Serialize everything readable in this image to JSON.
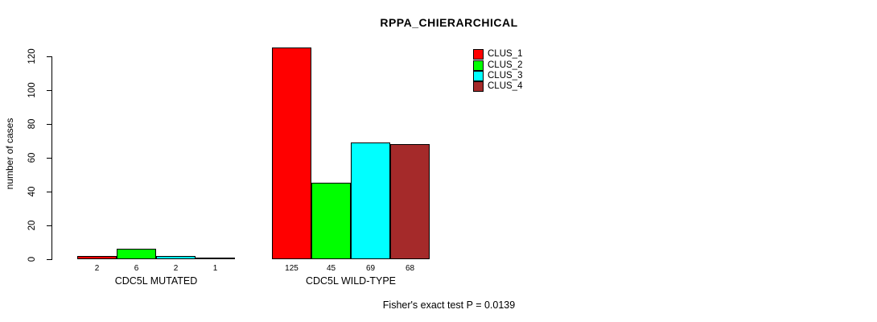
{
  "chart_data": {
    "type": "bar",
    "title": "RPPA_CHIERARCHICAL",
    "ylabel": "number of cases",
    "xlabel": "",
    "ylim": [
      0,
      125
    ],
    "yticks": [
      0,
      20,
      40,
      60,
      80,
      100,
      120
    ],
    "grid": false,
    "legend_position": "top-right",
    "series_names": [
      "CLUS_1",
      "CLUS_2",
      "CLUS_3",
      "CLUS_4"
    ],
    "colors": [
      "#ff0000",
      "#00ff00",
      "#00ffff",
      "#a52a2a"
    ],
    "groups": [
      {
        "label": "CDC5L MUTATED",
        "values": [
          2,
          6,
          2,
          1
        ]
      },
      {
        "label": "CDC5L WILD-TYPE",
        "values": [
          125,
          45,
          69,
          68
        ]
      }
    ],
    "annotation": "Fisher's exact test P = 0.0139"
  }
}
